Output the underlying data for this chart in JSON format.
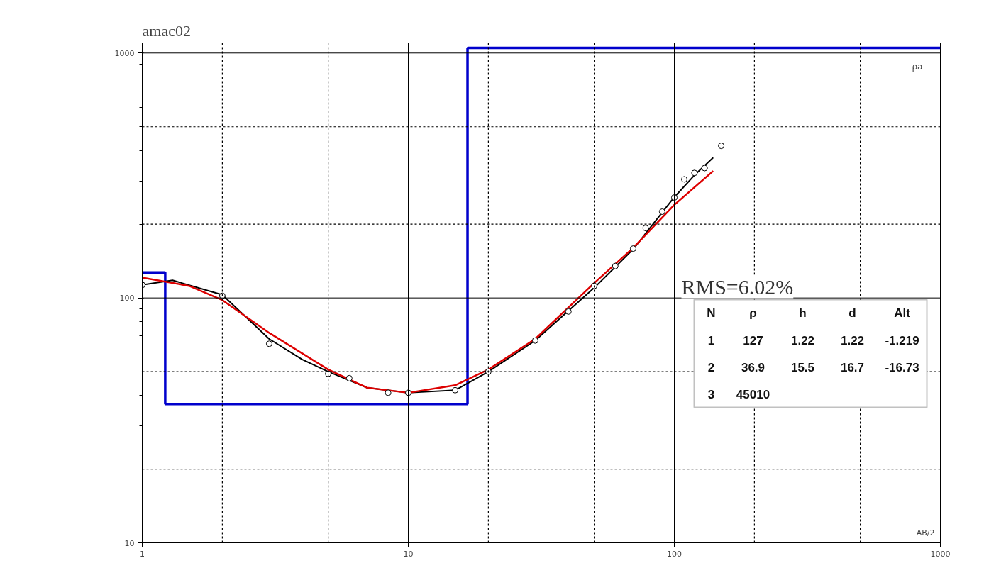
{
  "chart_data": {
    "type": "line",
    "title": "amac02",
    "xlabel": "AB/2",
    "ylabel": "ρa",
    "log": "xy",
    "xlim": [
      1,
      1000
    ],
    "ylim": [
      10,
      1100
    ],
    "xticks": [
      1,
      10,
      100,
      1000
    ],
    "yticks": [
      10,
      100,
      1000
    ],
    "grid": true,
    "series": [
      {
        "type": "step",
        "color": "#0000cc",
        "x": [
          1,
          1.22,
          16.7,
          1000
        ],
        "values": [
          127,
          36.9,
          1050,
          1050
        ]
      },
      {
        "color": "#000000",
        "x": [
          1,
          1.3,
          2,
          3,
          4,
          5,
          7,
          10,
          15,
          20,
          30,
          50,
          70,
          100,
          120,
          140
        ],
        "values": [
          113,
          118,
          103,
          68,
          56,
          50,
          43,
          41,
          42,
          50,
          67,
          110,
          158,
          258,
          320,
          374
        ]
      },
      {
        "color": "#dd0000",
        "x": [
          1,
          1.5,
          2,
          3,
          5,
          7,
          10,
          15,
          20,
          30,
          50,
          70,
          100,
          140
        ],
        "values": [
          121,
          112,
          98,
          72,
          51,
          43,
          41,
          44,
          51,
          68,
          115,
          160,
          240,
          330
        ]
      },
      {
        "type": "scatter",
        "color": "#000000",
        "marker": "circle",
        "x": [
          1,
          2,
          3,
          5,
          6,
          8.4,
          10,
          15,
          20,
          30,
          40,
          50,
          60,
          70,
          78,
          90,
          100,
          109,
          119,
          130,
          150
        ],
        "values": [
          113,
          102,
          65,
          49,
          47,
          41,
          41,
          42,
          50,
          67,
          88,
          112,
          135,
          159,
          193,
          225,
          257,
          305,
          324,
          339,
          418
        ]
      }
    ],
    "annotations": [
      "RMS=6.02%",
      "N",
      "ρ",
      "h",
      "d",
      "Alt",
      "1",
      "127",
      "1.22",
      "1.22",
      "-1.219",
      "2",
      "36.9",
      "15.5",
      "16.7",
      "-16.73",
      "3",
      "45010"
    ]
  }
}
